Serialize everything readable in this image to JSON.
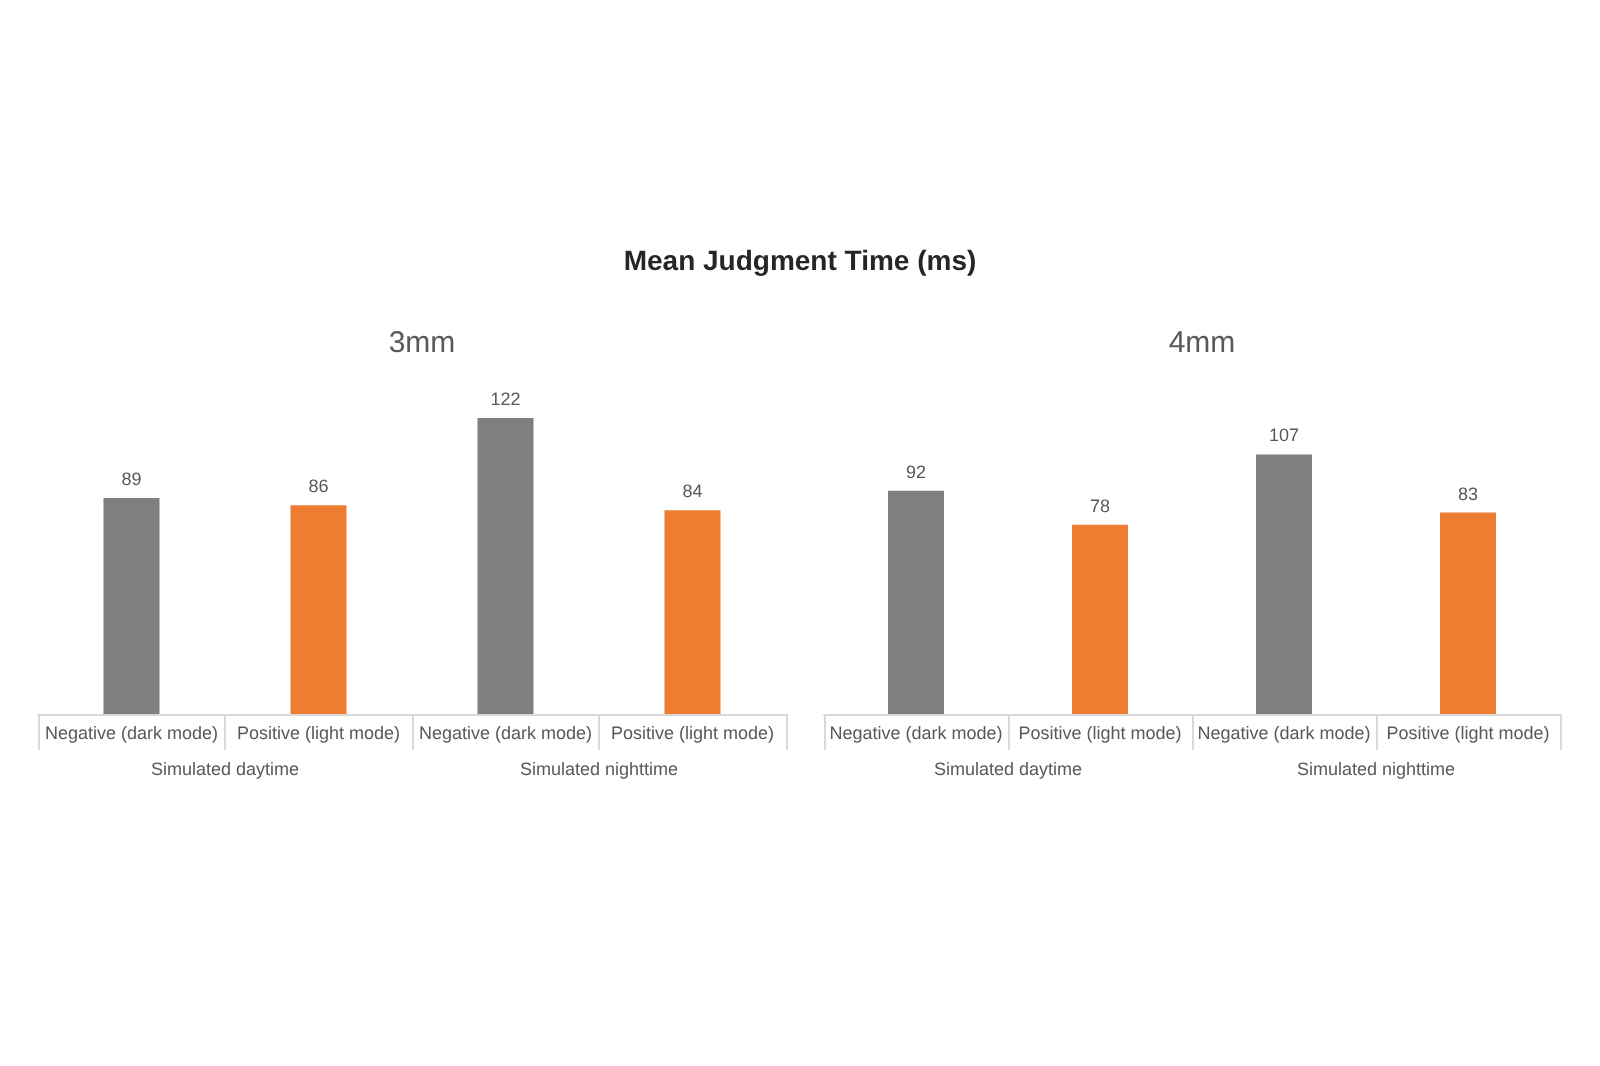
{
  "chart_data": [
    {
      "type": "bar",
      "title": "Mean Judgment Time (ms)",
      "subtitle": "3mm",
      "categories": [
        "Simulated daytime",
        "Simulated nighttime"
      ],
      "series": [
        {
          "name": "Negative (dark mode)",
          "color": "#7f7f7f",
          "values": [
            89,
            122
          ]
        },
        {
          "name": "Positive (light mode)",
          "color": "#ed7d31",
          "values": [
            86,
            84
          ]
        }
      ],
      "data_labels": true
    },
    {
      "type": "bar",
      "subtitle": "4mm",
      "categories": [
        "Simulated daytime",
        "Simulated nighttime"
      ],
      "series": [
        {
          "name": "Negative (dark mode)",
          "color": "#7f7f7f",
          "values": [
            92,
            107
          ]
        },
        {
          "name": "Positive (light mode)",
          "color": "#ed7d31",
          "values": [
            78,
            83
          ]
        }
      ],
      "data_labels": true
    }
  ]
}
